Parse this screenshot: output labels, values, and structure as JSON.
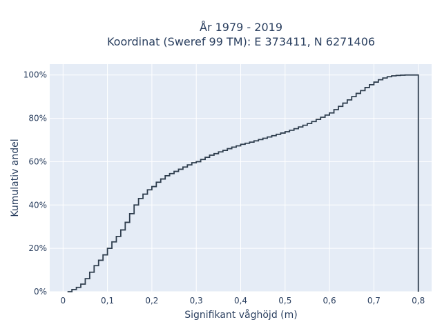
{
  "chart_data": {
    "type": "line",
    "title_line1": "År 1979 - 2019",
    "title_line2": "Koordinat (Sweref 99 TM): E 373411, N 6271406",
    "xlabel": "Signifikant våghöjd (m)",
    "ylabel": "Kumulativ andel",
    "xlim": [
      -0.03,
      0.83
    ],
    "ylim": [
      0,
      1.05
    ],
    "x_ticks": [
      0,
      0.1,
      0.2,
      0.3,
      0.4,
      0.5,
      0.6,
      0.7,
      0.8
    ],
    "x_tick_labels": [
      "0",
      "0,1",
      "0,2",
      "0,3",
      "0,4",
      "0,5",
      "0,6",
      "0,7",
      "0,8"
    ],
    "y_ticks": [
      0,
      0.2,
      0.4,
      0.6,
      0.8,
      1.0
    ],
    "y_tick_labels": [
      "0%",
      "20%",
      "40%",
      "60%",
      "80%",
      "100%"
    ],
    "grid": true,
    "line_shape": "step",
    "colors": {
      "plot_bg": "#e5ecf6",
      "line": "#2f3e4e",
      "grid": "#ffffff",
      "text": "#2a3f5f"
    },
    "series": [
      {
        "x": [
          0.01,
          0.02,
          0.03,
          0.04,
          0.05,
          0.06,
          0.07,
          0.08,
          0.09,
          0.1,
          0.11,
          0.12,
          0.13,
          0.14,
          0.15,
          0.16,
          0.17,
          0.18,
          0.19,
          0.2,
          0.21,
          0.22,
          0.23,
          0.24,
          0.25,
          0.26,
          0.27,
          0.28,
          0.29,
          0.3,
          0.31,
          0.32,
          0.33,
          0.34,
          0.35,
          0.36,
          0.37,
          0.38,
          0.39,
          0.4,
          0.41,
          0.42,
          0.43,
          0.44,
          0.45,
          0.46,
          0.47,
          0.48,
          0.49,
          0.5,
          0.51,
          0.52,
          0.53,
          0.54,
          0.55,
          0.56,
          0.57,
          0.58,
          0.59,
          0.6,
          0.61,
          0.62,
          0.63,
          0.64,
          0.65,
          0.66,
          0.67,
          0.68,
          0.69,
          0.7,
          0.71,
          0.72,
          0.73,
          0.74,
          0.75,
          0.76,
          0.77,
          0.78,
          0.79,
          0.8
        ],
        "y": [
          0.0,
          0.01,
          0.02,
          0.035,
          0.06,
          0.09,
          0.12,
          0.145,
          0.17,
          0.2,
          0.23,
          0.255,
          0.285,
          0.32,
          0.36,
          0.4,
          0.43,
          0.45,
          0.47,
          0.485,
          0.505,
          0.52,
          0.535,
          0.545,
          0.555,
          0.565,
          0.575,
          0.585,
          0.595,
          0.6,
          0.61,
          0.62,
          0.63,
          0.637,
          0.645,
          0.652,
          0.66,
          0.667,
          0.673,
          0.68,
          0.685,
          0.69,
          0.696,
          0.702,
          0.708,
          0.714,
          0.72,
          0.726,
          0.732,
          0.738,
          0.745,
          0.752,
          0.76,
          0.768,
          0.776,
          0.785,
          0.795,
          0.805,
          0.815,
          0.825,
          0.84,
          0.855,
          0.87,
          0.885,
          0.9,
          0.915,
          0.928,
          0.942,
          0.955,
          0.967,
          0.978,
          0.986,
          0.992,
          0.996,
          0.998,
          0.999,
          1.0,
          1.0,
          1.0,
          1.0
        ]
      }
    ]
  }
}
